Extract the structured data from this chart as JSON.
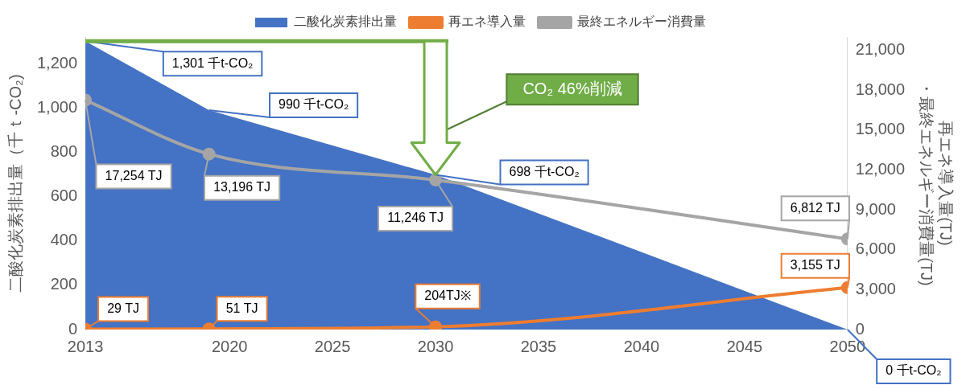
{
  "chart_data": {
    "type": "area",
    "x": [
      2013,
      2019,
      2030,
      2050
    ],
    "xlim": [
      2013,
      2050
    ],
    "xticks": [
      2013,
      2020,
      2025,
      2030,
      2035,
      2040,
      2045,
      2050
    ],
    "ylim": [
      0,
      1320
    ],
    "yticks": [
      0,
      200,
      400,
      600,
      800,
      {
        "value": 1000,
        "label": "1,000"
      },
      {
        "value": 1200,
        "label": "1,200"
      }
    ],
    "y2lim": [
      0,
      22000
    ],
    "y2ticks": [
      0,
      {
        "value": 3000,
        "label": "3,000"
      },
      {
        "value": 6000,
        "label": "6,000"
      },
      {
        "value": 9000,
        "label": "9,000"
      },
      {
        "value": 12000,
        "label": "12,000"
      },
      {
        "value": 15000,
        "label": "15,000"
      },
      {
        "value": 18000,
        "label": "18,000"
      },
      {
        "value": 21000,
        "label": "21,000"
      }
    ],
    "ylabel": "二酸化炭素排出量（千ｔ-CO₂)",
    "y2label": "再エネ導入量(TJ)\n・最終エネルギー消費量(TJ)",
    "legend": "top",
    "series": [
      {
        "name": "二酸化炭素排出量",
        "color": "#4472c4",
        "values": [
          1301,
          990,
          698,
          0
        ],
        "value_labels": [
          "1,301 千t-CO₂",
          "990 千t-CO₂",
          "698 千t-CO₂",
          "0 千t-CO₂"
        ],
        "marker": "none"
      },
      {
        "name": "再エネ導入量",
        "type": "line",
        "axis": "y2",
        "color": "#ed7d31",
        "values": [
          29,
          51,
          204,
          3155
        ],
        "value_labels": [
          "29 TJ",
          "51 TJ",
          "204TJ※",
          "3,155 TJ"
        ],
        "marker": "circle"
      },
      {
        "name": "最終エネルギー消費量",
        "type": "line",
        "axis": "y2",
        "color": "#a5a5a5",
        "values": [
          17254,
          13196,
          11246,
          6812
        ],
        "value_labels": [
          "17,254 TJ",
          "13,196 TJ",
          "11,246 TJ",
          "6,812 TJ"
        ],
        "marker": "circle"
      }
    ],
    "annotations": [
      "CO₂ 46%削減"
    ]
  }
}
